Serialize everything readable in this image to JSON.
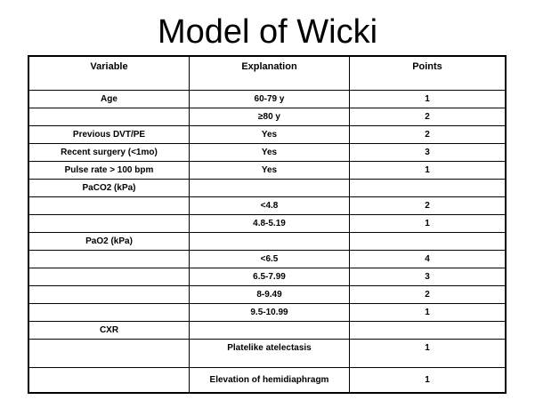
{
  "title": "Model of Wicki",
  "table": {
    "headers": [
      "Variable",
      "Explanation",
      "Points"
    ],
    "rows": [
      [
        "Age",
        "60-79 y",
        "1"
      ],
      [
        "",
        "≥80 y",
        "2"
      ],
      [
        "Previous DVT/PE",
        "Yes",
        "2"
      ],
      [
        "Recent surgery (<1mo)",
        "Yes",
        "3"
      ],
      [
        "Pulse rate > 100 bpm",
        "Yes",
        "1"
      ],
      [
        "PaCO2 (kPa)",
        "",
        ""
      ],
      [
        "",
        "<4.8",
        "2"
      ],
      [
        "",
        "4.8-5.19",
        "1"
      ],
      [
        "PaO2 (kPa)",
        "",
        ""
      ],
      [
        "",
        "<6.5",
        "4"
      ],
      [
        "",
        "6.5-7.99",
        "3"
      ],
      [
        "",
        "8-9.49",
        "2"
      ],
      [
        "",
        "9.5-10.99",
        "1"
      ],
      [
        "CXR",
        "",
        ""
      ],
      [
        "",
        "Platelike atelectasis",
        "1"
      ],
      [
        "",
        "Elevation of hemidiaphragm",
        "1"
      ]
    ]
  }
}
